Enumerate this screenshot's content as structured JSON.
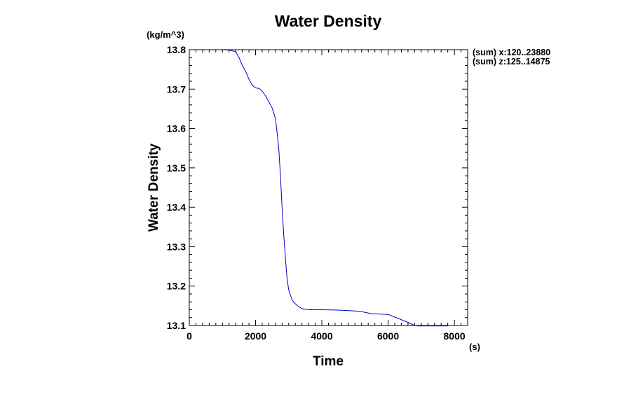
{
  "chart_data": {
    "type": "line",
    "title": "Water Density",
    "xlabel": "Time",
    "ylabel": "Water Density",
    "x_unit": "(s)",
    "y_unit": "(kg/m^3)",
    "xlim": [
      0,
      8400
    ],
    "ylim": [
      13.1,
      13.8
    ],
    "x_ticks": [
      0,
      2000,
      4000,
      6000,
      8000
    ],
    "x_tick_labels": [
      "0",
      "2000",
      "4000",
      "6000",
      "8000"
    ],
    "y_ticks": [
      13.1,
      13.2,
      13.3,
      13.4,
      13.5,
      13.6,
      13.7,
      13.8
    ],
    "y_tick_labels": [
      "13.1",
      "13.2",
      "13.3",
      "13.4",
      "13.5",
      "13.6",
      "13.7",
      "13.8"
    ],
    "grid": false,
    "line_color": "#0000cc",
    "annotations": [
      "(sum) x:120..23880",
      "(sum) z:125..14875"
    ],
    "series": [
      {
        "x": [
          0,
          500,
          1000,
          1200,
          1400,
          1500,
          1600,
          1700,
          1800,
          1900,
          2000,
          2100,
          2200,
          2300,
          2400,
          2500,
          2600,
          2650,
          2700,
          2750,
          2800,
          2850,
          2900,
          2950,
          3000,
          3100,
          3200,
          3300,
          3400,
          3600,
          4000,
          4500,
          5000,
          5200,
          5500,
          6000,
          6300,
          6600,
          6800,
          6900,
          7000,
          7500,
          7800
        ],
        "y": [
          13.8,
          13.8,
          13.8,
          13.799,
          13.795,
          13.78,
          13.76,
          13.745,
          13.725,
          13.71,
          13.703,
          13.702,
          13.695,
          13.683,
          13.668,
          13.652,
          13.625,
          13.59,
          13.55,
          13.48,
          13.4,
          13.33,
          13.27,
          13.22,
          13.19,
          13.165,
          13.155,
          13.148,
          13.143,
          13.14,
          13.14,
          13.139,
          13.137,
          13.135,
          13.13,
          13.128,
          13.118,
          13.108,
          13.1,
          13.099,
          13.099,
          13.099,
          13.099
        ]
      }
    ]
  }
}
